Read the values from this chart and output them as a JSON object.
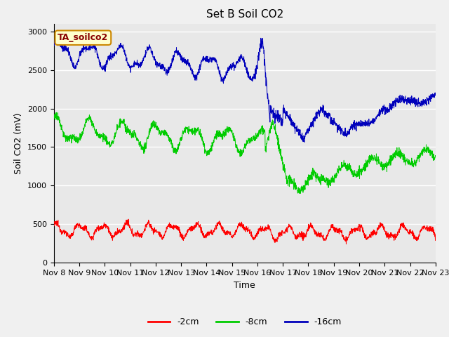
{
  "title": "Set B Soil CO2",
  "ylabel": "Soil CO2 (mV)",
  "xlabel": "Time",
  "ylim": [
    0,
    3100
  ],
  "yticks": [
    0,
    500,
    1000,
    1500,
    2000,
    2500,
    3000
  ],
  "xtick_labels": [
    "Nov 8",
    "Nov 9",
    "Nov 10",
    "Nov 11",
    "Nov 12",
    "Nov 13",
    "Nov 14",
    "Nov 15",
    "Nov 16",
    "Nov 17",
    "Nov 18",
    "Nov 19",
    "Nov 20",
    "Nov 21",
    "Nov 22",
    "Nov 23"
  ],
  "legend_labels": [
    "-2cm",
    "-8cm",
    "-16cm"
  ],
  "legend_colors": [
    "#ff0000",
    "#00cc00",
    "#0000bb"
  ],
  "line_colors": [
    "#ff0000",
    "#00cc00",
    "#0000bb"
  ],
  "annotation_text": "TA_soilco2",
  "annotation_box_color": "#ffffcc",
  "annotation_text_color": "#880000",
  "bg_color": "#e8e8e8",
  "fig_bg_color": "#f0f0f0",
  "grid_color": "#ffffff",
  "title_fontsize": 11,
  "label_fontsize": 9,
  "tick_fontsize": 8
}
